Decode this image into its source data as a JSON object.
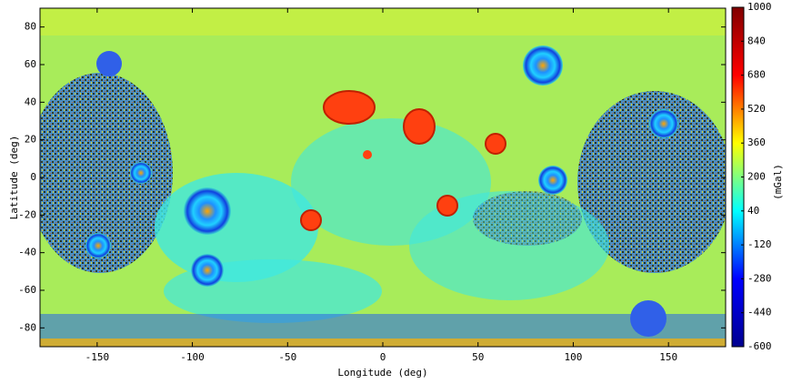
{
  "chart_data": {
    "type": "heatmap",
    "x_label": "Longitude (deg)",
    "y_label": "Latitude (deg)",
    "xlim": [
      -180,
      180
    ],
    "ylim": [
      -90,
      90
    ],
    "xticks": [
      -150,
      -100,
      -50,
      0,
      50,
      100,
      150
    ],
    "yticks": [
      -80,
      -60,
      -40,
      -20,
      0,
      20,
      40,
      60,
      80
    ],
    "colorbar": {
      "label": "(mGal)",
      "colormap": "jet",
      "lim": [
        -600,
        1000
      ],
      "ticks": [
        -600,
        -440,
        -280,
        -120,
        40,
        200,
        360,
        520,
        680,
        840,
        1000
      ]
    }
  }
}
